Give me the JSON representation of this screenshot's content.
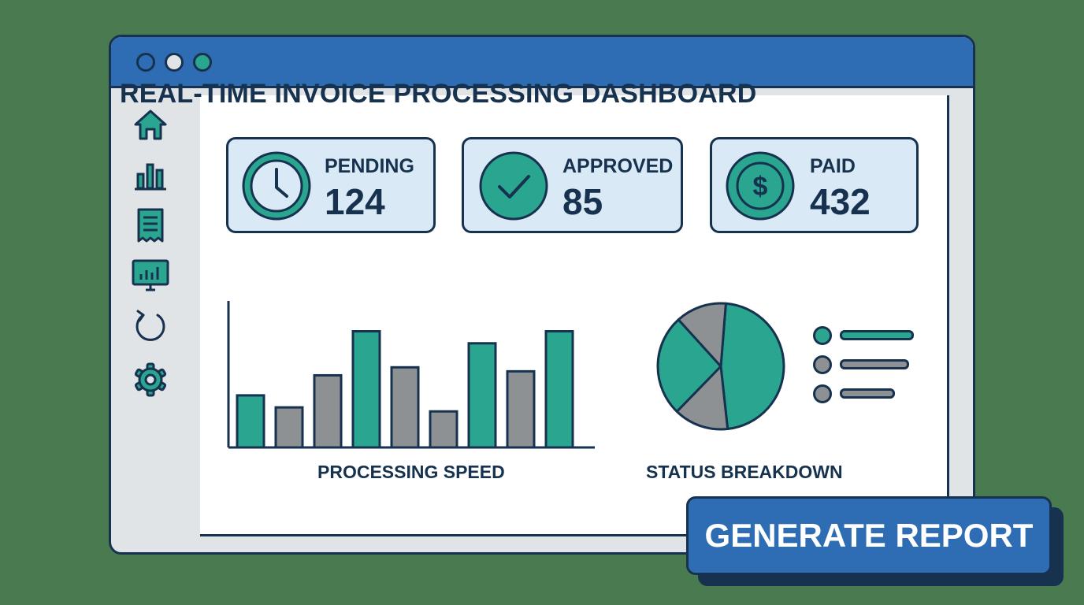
{
  "window": {
    "window_controls": [
      "close-dot",
      "minimize-dot",
      "maximize-dot"
    ],
    "control_colors": [
      "#2e6db3",
      "#e1e4e6",
      "#2aa58f"
    ]
  },
  "sidebar": {
    "items": [
      {
        "icon": "home-icon"
      },
      {
        "icon": "bar-chart-icon"
      },
      {
        "icon": "invoice-icon"
      },
      {
        "icon": "monitor-chart-icon"
      },
      {
        "icon": "refresh-icon"
      },
      {
        "icon": "gear-icon"
      }
    ]
  },
  "header": {
    "title": "REAL-TIME INVOICE PROCESSING DASHBOARD"
  },
  "stats": [
    {
      "label": "PENDING",
      "value": "124",
      "icon": "clock-icon"
    },
    {
      "label": "APPROVED",
      "value": "85",
      "icon": "checkmark-icon"
    },
    {
      "label": "PAID",
      "value": "432",
      "icon": "dollar-icon"
    }
  ],
  "processing_chart": {
    "label": "PROCESSING SPEED"
  },
  "status_chart": {
    "label": "STATUS BREAKDOWN"
  },
  "chart_data": [
    {
      "type": "bar",
      "title": "PROCESSING SPEED",
      "values": [
        13,
        10,
        18,
        29,
        20,
        9,
        26,
        19,
        29
      ],
      "colors": [
        "#2aa58f",
        "#8d9194",
        "#8d9194",
        "#2aa58f",
        "#8d9194",
        "#8d9194",
        "#2aa58f",
        "#8d9194",
        "#2aa58f"
      ],
      "ylim": [
        0,
        35
      ],
      "grid": false
    },
    {
      "type": "pie",
      "title": "STATUS BREAKDOWN",
      "values": [
        47,
        14,
        26,
        13
      ],
      "colors": [
        "#2aa58f",
        "#8d9194",
        "#2aa58f",
        "#8d9194"
      ],
      "legend": {
        "placement": "right",
        "entries": [
          {
            "color": "#2aa58f",
            "text": ""
          },
          {
            "color": "#8d9194",
            "text": ""
          },
          {
            "color": "#8d9194",
            "text": ""
          }
        ]
      }
    }
  ],
  "colors": {
    "background": "#4a7a50",
    "titlebar": "#2e6db3",
    "outline": "#16324f",
    "teal": "#2aa58f",
    "gray": "#8d9194",
    "card": "#d9e9f5"
  },
  "actions": {
    "generate_report_label": "GENERATE REPORT"
  }
}
